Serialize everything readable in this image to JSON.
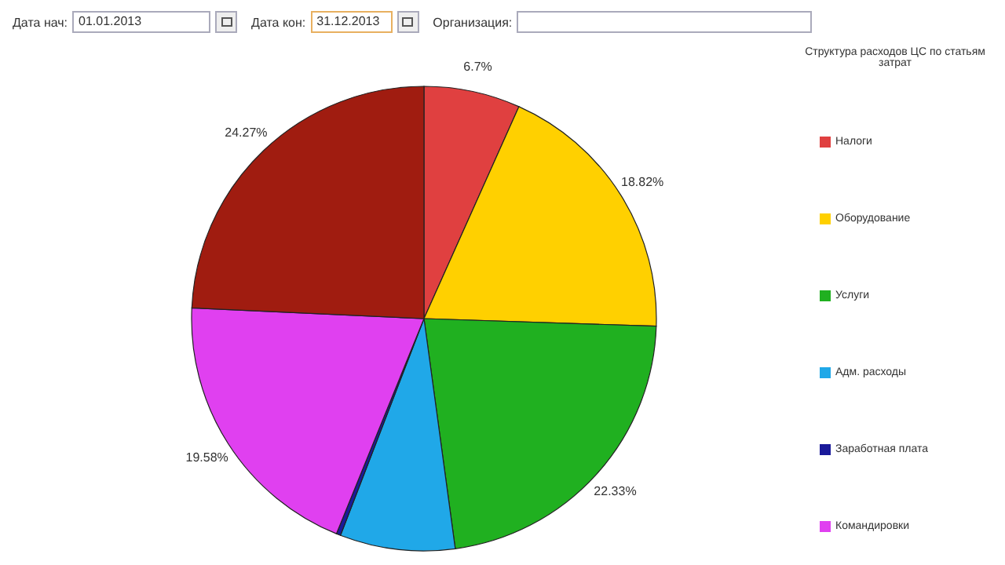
{
  "chart_data": {
    "type": "pie",
    "legend_title": "Структура расходов ЦС по статьям затрат",
    "categories": [
      "Налоги",
      "Оборудование",
      "Услуги",
      "Адм. расходы",
      "Заработная плата",
      "Командировки",
      null
    ],
    "values": [
      6.7,
      18.82,
      22.33,
      8.0,
      0.3,
      19.58,
      24.27
    ],
    "colors": [
      "#e04040",
      "#ffd000",
      "#20b020",
      "#20a8e8",
      "#1a1a9a",
      "#e040f0",
      "#a01c10"
    ],
    "value_labels": [
      "6.7%",
      "18.82%",
      "22.33%",
      null,
      null,
      "19.58%",
      "24.27%"
    ],
    "legend": "right",
    "annotations": [
      "Дата нач:",
      "01.01.2013",
      "Дата кон:",
      "31.12.2013",
      "Организация:"
    ]
  }
}
